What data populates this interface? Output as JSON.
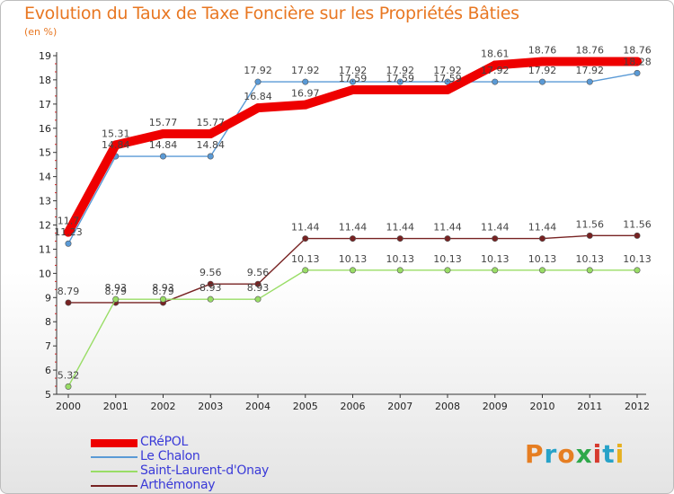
{
  "title": "Evolution du Taux de Taxe Foncière sur les Propriétés Bâties",
  "unit_label": "(en %)",
  "logo": {
    "text": "Proxiti",
    "letter_colors": [
      "#e67e22",
      "#27a2c8",
      "#e67e22",
      "#2ea84a",
      "#d63a2f",
      "#27a2c8",
      "#e6b020"
    ]
  },
  "chart_data": {
    "type": "line",
    "title": "Evolution du Taux de Taxe Foncière sur les Propriétés Bâties",
    "ylabel": "(en %)",
    "xlabel": "",
    "categories": [
      "2000",
      "2001",
      "2002",
      "2003",
      "2004",
      "2005",
      "2006",
      "2007",
      "2008",
      "2009",
      "2010",
      "2011",
      "2012"
    ],
    "y_ticks": [
      "5",
      "6",
      "7",
      "8",
      "9",
      "10",
      "11",
      "12",
      "13",
      "14",
      "15",
      "16",
      "17",
      "18",
      "19"
    ],
    "ylim": [
      5,
      19
    ],
    "grid": false,
    "series": [
      {
        "name": "CRéPOL",
        "color": "#ee0000",
        "thick": true,
        "values": [
          11.7,
          15.31,
          15.77,
          15.77,
          16.84,
          16.97,
          17.59,
          17.59,
          17.59,
          18.61,
          18.76,
          18.76,
          18.76
        ],
        "labels": [
          "11.7",
          "15.31",
          "15.77",
          "15.77",
          "16.84",
          "16.97",
          "17.59",
          "17.59",
          "17.59",
          "18.61",
          "18.76",
          "18.76",
          "18.76"
        ],
        "label_pos": "above"
      },
      {
        "name": "Le Chalon",
        "color": "#5a9ad6",
        "thick": false,
        "values": [
          11.23,
          14.84,
          14.84,
          14.84,
          17.92,
          17.92,
          17.92,
          17.92,
          17.92,
          17.92,
          17.92,
          17.92,
          18.28
        ],
        "labels": [
          "11.23",
          "14.84",
          "14.84",
          "14.84",
          "17.92",
          "17.92",
          "17.92",
          "17.92",
          "17.92",
          "17.92",
          "17.92",
          "17.92",
          "18.28"
        ],
        "label_pos": "above"
      },
      {
        "name": "Saint-Laurent-d'Onay",
        "color": "#99dd66",
        "thick": false,
        "values": [
          5.32,
          8.93,
          8.93,
          8.93,
          8.93,
          10.13,
          10.13,
          10.13,
          10.13,
          10.13,
          10.13,
          10.13,
          10.13
        ],
        "labels": [
          "5.32",
          "8.93",
          "8.93",
          "8.93",
          "8.93",
          "10.13",
          "10.13",
          "10.13",
          "10.13",
          "10.13",
          "10.13",
          "10.13",
          "10.13"
        ],
        "label_pos": "above"
      },
      {
        "name": "Arthémonay",
        "color": "#772222",
        "thick": false,
        "values": [
          8.79,
          8.79,
          8.79,
          9.56,
          9.56,
          11.44,
          11.44,
          11.44,
          11.44,
          11.44,
          11.44,
          11.56,
          11.56
        ],
        "labels": [
          "8.79",
          "8.79",
          "8.79",
          "9.56",
          "9.56",
          "11.44",
          "11.44",
          "11.44",
          "11.44",
          "11.44",
          "11.44",
          "11.56",
          "11.56"
        ],
        "label_pos": "above"
      }
    ]
  }
}
